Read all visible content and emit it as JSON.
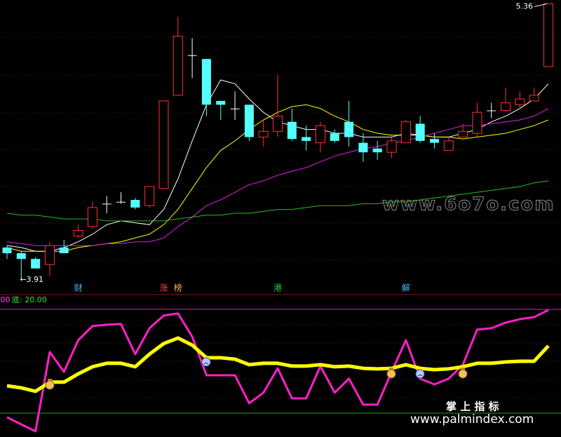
{
  "chart_data": [
    {
      "type": "candlestick",
      "ylim": [
        3.84,
        5.38
      ],
      "up_color": "#ff3232",
      "down_color": "#54ffff",
      "flat_color": "#ffffff",
      "open": [
        4.08,
        4.05,
        4.02,
        3.99,
        4.08,
        4.14,
        4.19,
        4.31,
        4.32,
        4.33,
        4.3,
        4.39,
        4.88,
        5.09,
        5.07,
        4.85,
        4.81,
        4.83,
        4.66,
        4.69,
        4.74,
        4.66,
        4.63,
        4.68,
        4.74,
        4.63,
        4.6,
        4.58,
        4.63,
        4.73,
        4.65,
        4.59,
        4.66,
        4.68,
        4.8,
        4.8,
        4.83,
        4.85,
        5.03
      ],
      "high": [
        4.09,
        4.06,
        4.03,
        4.11,
        4.12,
        4.2,
        4.32,
        4.35,
        4.37,
        4.34,
        4.4,
        4.85,
        5.29,
        5.18,
        5.07,
        4.85,
        4.9,
        4.83,
        4.75,
        4.99,
        4.81,
        4.72,
        4.74,
        4.7,
        4.85,
        4.68,
        4.64,
        4.67,
        4.75,
        4.77,
        4.68,
        4.66,
        4.73,
        4.84,
        4.84,
        4.92,
        4.9,
        4.92,
        5.36
      ],
      "low": [
        4.02,
        3.91,
        3.97,
        3.93,
        4.05,
        4.13,
        4.18,
        4.26,
        4.31,
        4.28,
        4.29,
        4.39,
        4.88,
        4.97,
        4.77,
        4.75,
        4.75,
        4.64,
        4.61,
        4.66,
        4.64,
        4.59,
        4.58,
        4.63,
        4.61,
        4.53,
        4.54,
        4.55,
        4.63,
        4.63,
        4.6,
        4.59,
        4.66,
        4.66,
        4.76,
        4.79,
        4.81,
        4.85,
        5.03
      ],
      "close": [
        4.05,
        4.02,
        3.97,
        4.09,
        4.05,
        4.17,
        4.29,
        4.31,
        4.32,
        4.29,
        4.4,
        4.85,
        5.19,
        5.09,
        4.83,
        4.83,
        4.81,
        4.66,
        4.69,
        4.77,
        4.65,
        4.64,
        4.72,
        4.64,
        4.66,
        4.58,
        4.58,
        4.64,
        4.74,
        4.64,
        4.63,
        4.64,
        4.69,
        4.79,
        4.8,
        4.84,
        4.86,
        4.88,
        5.36
      ],
      "overlays": [
        {
          "color": "#ffffff",
          "values": [
            4.09,
            4.08,
            4.06,
            4.06,
            4.08,
            4.11,
            4.15,
            4.2,
            4.22,
            4.21,
            4.2,
            4.28,
            4.44,
            4.64,
            4.83,
            4.96,
            4.94,
            4.86,
            4.79,
            4.74,
            4.72,
            4.7,
            4.7,
            4.68,
            4.68,
            4.66,
            4.66,
            4.66,
            4.68,
            4.67,
            4.66,
            4.66,
            4.68,
            4.7,
            4.74,
            4.77,
            4.81,
            4.86,
            4.94
          ]
        },
        {
          "color": "#ffff00",
          "values": [
            4.08,
            4.06,
            4.06,
            4.06,
            4.06,
            4.08,
            4.09,
            4.1,
            4.11,
            4.13,
            4.15,
            4.2,
            4.28,
            4.39,
            4.5,
            4.59,
            4.64,
            4.7,
            4.75,
            4.79,
            4.82,
            4.83,
            4.81,
            4.77,
            4.74,
            4.7,
            4.68,
            4.67,
            4.67,
            4.67,
            4.66,
            4.66,
            4.65,
            4.66,
            4.67,
            4.68,
            4.7,
            4.72,
            4.75
          ]
        },
        {
          "color": "#e020e0",
          "values": [
            4.11,
            4.1,
            4.09,
            4.09,
            4.09,
            4.09,
            4.09,
            4.1,
            4.1,
            4.11,
            4.11,
            4.13,
            4.19,
            4.24,
            4.3,
            4.33,
            4.37,
            4.41,
            4.43,
            4.46,
            4.48,
            4.5,
            4.53,
            4.56,
            4.58,
            4.6,
            4.61,
            4.63,
            4.64,
            4.66,
            4.68,
            4.7,
            4.72,
            4.72,
            4.73,
            4.74,
            4.75,
            4.77,
            4.81
          ]
        },
        {
          "color": "#20c020",
          "values": [
            4.26,
            4.25,
            4.25,
            4.24,
            4.23,
            4.23,
            4.23,
            4.22,
            4.22,
            4.22,
            4.22,
            4.22,
            4.23,
            4.24,
            4.25,
            4.25,
            4.26,
            4.26,
            4.27,
            4.28,
            4.28,
            4.29,
            4.3,
            4.3,
            4.3,
            4.31,
            4.31,
            4.32,
            4.32,
            4.33,
            4.34,
            4.35,
            4.36,
            4.37,
            4.38,
            4.39,
            4.4,
            4.42,
            4.43
          ]
        }
      ],
      "annotations": [
        {
          "index": 38,
          "value": 5.36,
          "text": "5.36"
        },
        {
          "index": 1,
          "value": 3.91,
          "text": "←3.91"
        }
      ],
      "events": [
        {
          "index": 5,
          "label": "财",
          "color": "#4fb8ff"
        },
        {
          "index": 11,
          "label": "涨",
          "color": "#ff4040"
        },
        {
          "index": 12,
          "label": "榜",
          "color": "#ffb040"
        },
        {
          "index": 19,
          "label": "港",
          "color": "#20d040"
        },
        {
          "index": 28,
          "label": "解",
          "color": "#4fb8ff"
        }
      ],
      "watermark": "www.6o7o.com"
    },
    {
      "type": "line",
      "ylim": [
        6.2,
        88.5
      ],
      "legend_texts": [
        ".00",
        "底: 20.00"
      ],
      "reference_lines": [
        {
          "value": 80,
          "color": "#c030c0"
        },
        {
          "value": 20,
          "color": "#20a020"
        }
      ],
      "series": [
        {
          "color": "#ff20c8",
          "width": 3,
          "values": [
            17.6,
            13.5,
            9.5,
            55.3,
            43.9,
            62.2,
            70.3,
            71.1,
            71.5,
            54.1,
            69.1,
            76.4,
            77.6,
            64.2,
            41.9,
            41.9,
            41.9,
            25.7,
            31.8,
            45.9,
            28.5,
            28.5,
            47.2,
            31.8,
            39.9,
            24.9,
            24.9,
            43.9,
            62.2,
            39.9,
            36.6,
            39.9,
            48.0,
            68.3,
            69.1,
            72.3,
            74.3,
            75.5,
            79.6
          ]
        },
        {
          "color": "#ffff00",
          "width": 5,
          "values": [
            35.8,
            34.6,
            32.6,
            37.9,
            37.9,
            42.7,
            46.8,
            48.8,
            48.8,
            46.8,
            54.1,
            60.2,
            63.4,
            59.3,
            52.0,
            52.0,
            51.2,
            48.0,
            48.8,
            48.8,
            47.2,
            47.2,
            48.0,
            46.8,
            47.2,
            45.9,
            45.6,
            45.9,
            48.0,
            45.9,
            45.1,
            45.6,
            46.8,
            48.8,
            48.8,
            49.6,
            50.0,
            50.0,
            58.9
          ]
        }
      ],
      "watermarks": [
        "掌 上 指 标",
        "www.palmindex.com"
      ]
    }
  ]
}
